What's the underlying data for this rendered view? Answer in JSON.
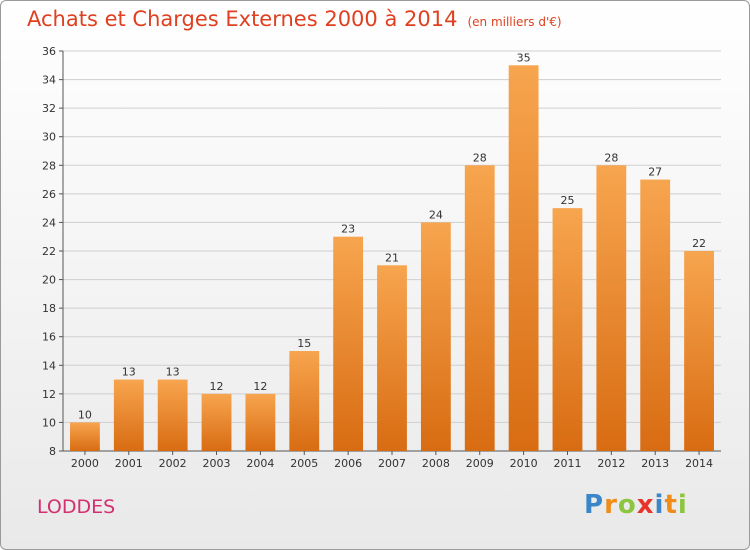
{
  "header": {
    "title": "Achats et Charges Externes 2000 à 2014",
    "subtitle": "(en milliers d'€)"
  },
  "commune": "LODDES",
  "logo_text": "Proxiti",
  "colors": {
    "bar_light": "#f7a54f",
    "bar_dark": "#d86c12",
    "title": "#e0401f",
    "commune": "#d42f70"
  },
  "chart_data": {
    "type": "bar",
    "title": "Achats et Charges Externes 2000 à 2014",
    "subtitle": "(en milliers d'€)",
    "xlabel": "",
    "ylabel": "",
    "categories": [
      "2000",
      "2001",
      "2002",
      "2003",
      "2004",
      "2005",
      "2006",
      "2007",
      "2008",
      "2009",
      "2010",
      "2011",
      "2012",
      "2013",
      "2014"
    ],
    "values": [
      10,
      13,
      13,
      12,
      12,
      15,
      23,
      21,
      24,
      28,
      35,
      25,
      28,
      27,
      22
    ],
    "ylim": [
      8,
      36
    ],
    "yticks": [
      8,
      10,
      12,
      14,
      16,
      18,
      20,
      22,
      24,
      26,
      28,
      30,
      32,
      34,
      36
    ],
    "grid": true,
    "legend": "none",
    "data_labels": true
  }
}
